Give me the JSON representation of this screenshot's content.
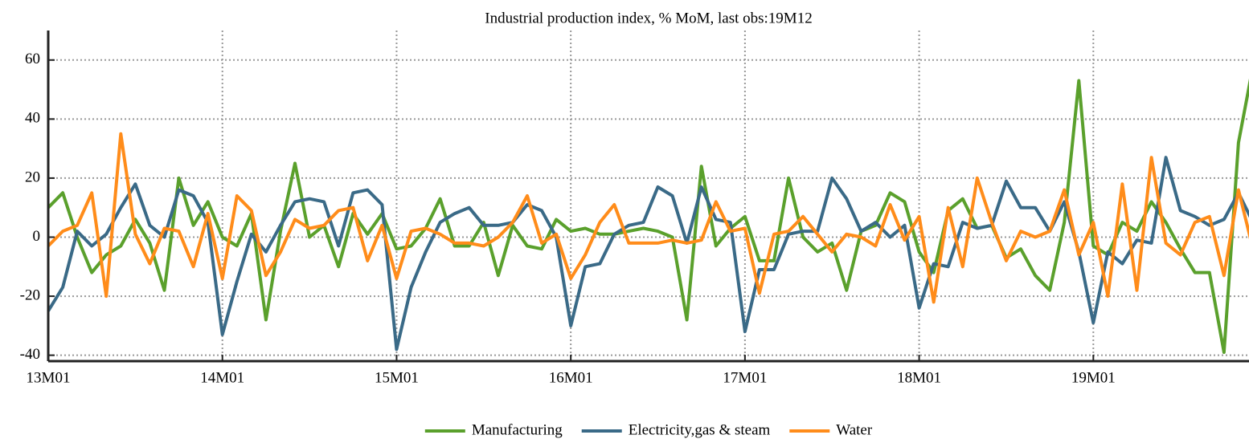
{
  "chart_data": {
    "type": "line",
    "title": "Industrial production index, % MoM, last obs:19M12",
    "categories": [
      "13M01",
      null,
      null,
      null,
      null,
      null,
      null,
      null,
      null,
      null,
      null,
      null,
      "14M01",
      null,
      null,
      null,
      null,
      null,
      null,
      null,
      null,
      null,
      null,
      null,
      "15M01",
      null,
      null,
      null,
      null,
      null,
      null,
      null,
      null,
      null,
      null,
      null,
      "16M01",
      null,
      null,
      null,
      null,
      null,
      null,
      null,
      null,
      null,
      null,
      null,
      "17M01",
      null,
      null,
      null,
      null,
      null,
      null,
      null,
      null,
      null,
      null,
      null,
      "18M01",
      null,
      null,
      null,
      null,
      null,
      null,
      null,
      null,
      null,
      null,
      null,
      "19M01",
      null,
      null,
      null,
      null,
      null,
      null,
      null,
      null,
      null,
      null,
      null
    ],
    "series": [
      {
        "name": "Manufacturing",
        "color": "#5aa02c",
        "values": [
          10,
          15,
          0,
          -12,
          -6,
          -3,
          6,
          -2,
          -18,
          20,
          4,
          12,
          0,
          -3,
          8,
          -28,
          2,
          25,
          0,
          4,
          -10,
          8,
          1,
          8,
          -4,
          -3,
          3,
          13,
          -3,
          -3,
          5,
          -13,
          4,
          -3,
          -4,
          6,
          2,
          3,
          1,
          1,
          2,
          3,
          2,
          0,
          -28,
          24,
          -3,
          3,
          7,
          -8,
          -8,
          20,
          0,
          -5,
          -2,
          -18,
          2,
          4,
          15,
          12,
          -5,
          -12,
          9,
          13,
          3,
          4,
          -7,
          -4,
          -13,
          -18,
          5,
          53,
          -3,
          -6,
          5,
          2,
          12,
          5,
          -4,
          -12,
          -12,
          -39,
          32,
          58
        ]
      },
      {
        "name": "Electricity,gas & steam",
        "color": "#3a6a87",
        "values": [
          -25,
          -17,
          2,
          -3,
          1,
          10,
          18,
          4,
          0,
          16,
          14,
          5,
          -33,
          -15,
          1,
          -5,
          4,
          12,
          13,
          12,
          -3,
          15,
          16,
          11,
          -38,
          -17,
          -5,
          5,
          8,
          10,
          4,
          4,
          5,
          11,
          9,
          0,
          -30,
          -10,
          -9,
          1,
          4,
          5,
          17,
          14,
          -2,
          17,
          6,
          5,
          -32,
          -11,
          -11,
          1,
          2,
          2,
          20,
          13,
          2,
          5,
          0,
          4,
          -24,
          -9,
          -10,
          5,
          3,
          4,
          19,
          10,
          10,
          2,
          12,
          -5,
          -29,
          -5,
          -9,
          -1,
          -2,
          27,
          9,
          7,
          4,
          6,
          15,
          5
        ]
      },
      {
        "name": "Water",
        "color": "#ff8c1a",
        "values": [
          -3,
          2,
          4,
          15,
          -20,
          35,
          1,
          -9,
          3,
          2,
          -10,
          8,
          -14,
          14,
          9,
          -13,
          -5,
          6,
          3,
          4,
          9,
          10,
          -8,
          4,
          -14,
          2,
          3,
          1,
          -2,
          -2,
          -3,
          0,
          5,
          14,
          -2,
          1,
          -14,
          -6,
          5,
          11,
          -2,
          -2,
          -2,
          -1,
          -2,
          -1,
          12,
          2,
          3,
          -19,
          1,
          2,
          7,
          1,
          -5,
          1,
          0,
          -3,
          11,
          -1,
          7,
          -22,
          10,
          -10,
          20,
          5,
          -8,
          2,
          0,
          2,
          16,
          -6,
          5,
          -20,
          18,
          -18,
          27,
          -2,
          -6,
          5,
          7,
          -13,
          16,
          -4
        ]
      }
    ],
    "ylim": [
      -42,
      70
    ],
    "yticks": [
      60,
      40,
      20,
      0,
      -20,
      -40
    ],
    "grid": true,
    "legend": "bottom"
  }
}
